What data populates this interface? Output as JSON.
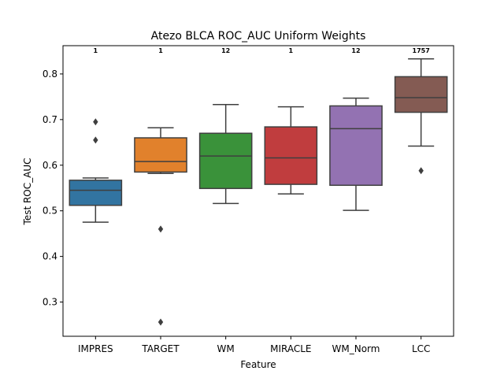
{
  "chart_data": {
    "type": "box",
    "title": "Atezo BLCA ROC_AUC Uniform Weights",
    "xlabel": "Feature",
    "ylabel": "Test ROC_AUC",
    "ylim": [
      0.225,
      0.862
    ],
    "yticks": [
      0.3,
      0.4,
      0.5,
      0.6,
      0.7,
      0.8
    ],
    "ytick_labels": [
      "0.3",
      "0.4",
      "0.5",
      "0.6",
      "0.7",
      "0.8"
    ],
    "grid": false,
    "categories": [
      "IMPRES",
      "TARGET",
      "WM",
      "MIRACLE",
      "WM_Norm",
      "LCC"
    ],
    "counts": [
      "1",
      "1",
      "12",
      "1",
      "12",
      "1757"
    ],
    "boxes": [
      {
        "category": "IMPRES",
        "color": "#3274a1",
        "whislo": 0.475,
        "q1": 0.512,
        "median": 0.545,
        "q3": 0.567,
        "whishi": 0.572,
        "fliers": [
          0.695,
          0.655
        ]
      },
      {
        "category": "TARGET",
        "color": "#e1812c",
        "whislo": 0.582,
        "q1": 0.585,
        "median": 0.608,
        "q3": 0.66,
        "whishi": 0.682,
        "fliers": [
          0.46,
          0.256
        ]
      },
      {
        "category": "WM",
        "color": "#3a923a",
        "whislo": 0.516,
        "q1": 0.549,
        "median": 0.62,
        "q3": 0.67,
        "whishi": 0.733,
        "fliers": []
      },
      {
        "category": "MIRACLE",
        "color": "#c03d3e",
        "whislo": 0.537,
        "q1": 0.558,
        "median": 0.616,
        "q3": 0.684,
        "whishi": 0.728,
        "fliers": []
      },
      {
        "category": "WM_Norm",
        "color": "#9372b2",
        "whislo": 0.501,
        "q1": 0.556,
        "median": 0.68,
        "q3": 0.73,
        "whishi": 0.747,
        "fliers": []
      },
      {
        "category": "LCC",
        "color": "#845b53",
        "whislo": 0.642,
        "q1": 0.716,
        "median": 0.748,
        "q3": 0.794,
        "whishi": 0.833,
        "fliers": [
          0.588
        ]
      }
    ]
  }
}
